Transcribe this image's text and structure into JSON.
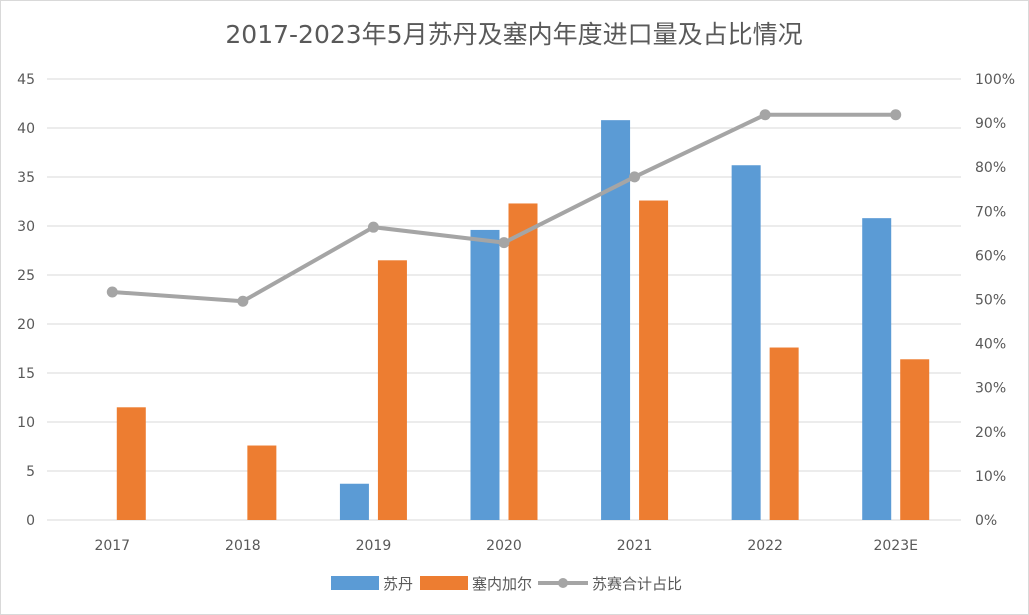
{
  "chart_data": {
    "type": "bar",
    "title": "2017-2023年5月苏丹及塞内年度进口量及占比情况",
    "categories": [
      "2017",
      "2018",
      "2019",
      "2020",
      "2021",
      "2022",
      "2023E"
    ],
    "series": [
      {
        "name": "苏丹",
        "type": "bar",
        "axis": "left",
        "color": "#5b9bd5",
        "values": [
          0,
          0,
          3.7,
          29.6,
          40.8,
          36.2,
          30.8
        ]
      },
      {
        "name": "塞内加尔",
        "type": "bar",
        "axis": "left",
        "color": "#ed7d31",
        "values": [
          11.5,
          7.6,
          26.5,
          32.3,
          32.6,
          17.6,
          16.4
        ]
      },
      {
        "name": "苏赛合计占比",
        "type": "line",
        "axis": "right",
        "color": "#a5a5a5",
        "values": [
          0.517,
          0.496,
          0.664,
          0.629,
          0.778,
          0.919,
          0.919
        ]
      }
    ],
    "y_left": {
      "min": 0,
      "max": 45,
      "ticks": [
        "0",
        "5",
        "10",
        "15",
        "20",
        "25",
        "30",
        "35",
        "40",
        "45"
      ]
    },
    "y_right": {
      "min": 0,
      "max": 1,
      "ticks": [
        "0%",
        "10%",
        "20%",
        "30%",
        "40%",
        "50%",
        "60%",
        "70%",
        "80%",
        "90%",
        "100%"
      ]
    },
    "grid": true,
    "legend_position": "bottom"
  }
}
